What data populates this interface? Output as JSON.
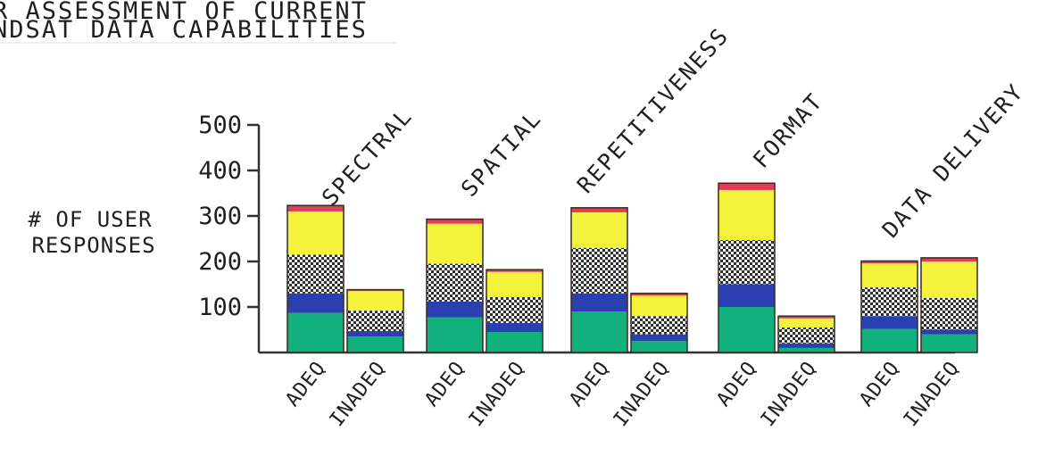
{
  "chart_data": {
    "type": "bar",
    "stacked": true,
    "title_lines": [
      "R ASSESSMENT OF CURRENT",
      "NDSAT DATA CAPABILITIES"
    ],
    "ylabel_lines": [
      "# OF USER",
      "RESPONSES"
    ],
    "ylim": [
      0,
      500
    ],
    "yticks": [
      100,
      200,
      300,
      400,
      500
    ],
    "groups": [
      "SPECTRAL",
      "SPATIAL",
      "REPETITIVENESS",
      "FORMAT",
      "DATA DELIVERY"
    ],
    "bar_labels": [
      "ADEQ",
      "INADEQ"
    ],
    "segment_colors": [
      "#12b07c",
      "#2a3fb0",
      "#cfcfcf",
      "#f3f33c",
      "#e03c55"
    ],
    "bars": [
      {
        "group": "SPECTRAL",
        "label": "ADEQ",
        "segments": [
          87,
          43,
          85,
          95,
          13
        ]
      },
      {
        "group": "SPECTRAL",
        "label": "INADEQ",
        "segments": [
          35,
          12,
          45,
          43,
          3
        ]
      },
      {
        "group": "SPATIAL",
        "label": "ADEQ",
        "segments": [
          77,
          35,
          83,
          88,
          10
        ]
      },
      {
        "group": "SPATIAL",
        "label": "INADEQ",
        "segments": [
          45,
          20,
          57,
          55,
          5
        ]
      },
      {
        "group": "REPETITIVENESS",
        "label": "ADEQ",
        "segments": [
          90,
          40,
          100,
          78,
          10
        ]
      },
      {
        "group": "REPETITIVENESS",
        "label": "INADEQ",
        "segments": [
          25,
          15,
          40,
          45,
          5
        ]
      },
      {
        "group": "FORMAT",
        "label": "ADEQ",
        "segments": [
          100,
          50,
          97,
          110,
          15
        ]
      },
      {
        "group": "FORMAT",
        "label": "INADEQ",
        "segments": [
          10,
          10,
          35,
          20,
          5
        ]
      },
      {
        "group": "DATA DELIVERY",
        "label": "ADEQ",
        "segments": [
          52,
          28,
          63,
          53,
          5
        ]
      },
      {
        "group": "DATA DELIVERY",
        "label": "INADEQ",
        "segments": [
          40,
          10,
          70,
          80,
          8
        ]
      }
    ]
  }
}
